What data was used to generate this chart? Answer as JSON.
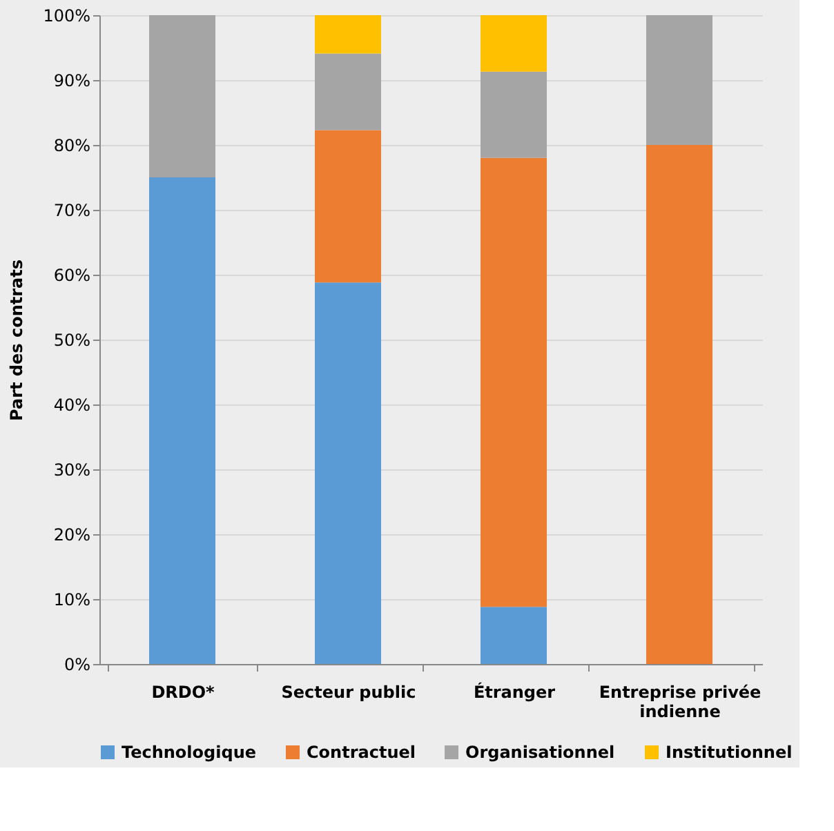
{
  "chart_data": {
    "type": "bar",
    "stacked": true,
    "ylabel": "Part des contrats",
    "categories": [
      "DRDO*",
      "Secteur public",
      "Étranger",
      "Entreprise privée indienne"
    ],
    "series": [
      {
        "name": "Technologique",
        "color": "#5b9bd5",
        "values": [
          75,
          58.8,
          8.8,
          0
        ]
      },
      {
        "name": "Contractuel",
        "color": "#ed7d31",
        "values": [
          0,
          23.5,
          69.2,
          80
        ]
      },
      {
        "name": "Organisationnel",
        "color": "#a5a5a5",
        "values": [
          25,
          11.8,
          13.3,
          20
        ]
      },
      {
        "name": "Institutionnel",
        "color": "#ffc000",
        "values": [
          0,
          5.9,
          8.7,
          0
        ]
      }
    ],
    "ylim": [
      0,
      100
    ],
    "yticks": [
      {
        "value": 0,
        "label": "0%"
      },
      {
        "value": 10,
        "label": "10%"
      },
      {
        "value": 20,
        "label": "20%"
      },
      {
        "value": 30,
        "label": "30%"
      },
      {
        "value": 40,
        "label": "40%"
      },
      {
        "value": 50,
        "label": "50%"
      },
      {
        "value": 60,
        "label": "60%"
      },
      {
        "value": 70,
        "label": "70%"
      },
      {
        "value": 80,
        "label": "80%"
      },
      {
        "value": 90,
        "label": "90%"
      },
      {
        "value": 100,
        "label": "100%"
      }
    ],
    "grid": "y",
    "legend": "bottom"
  }
}
